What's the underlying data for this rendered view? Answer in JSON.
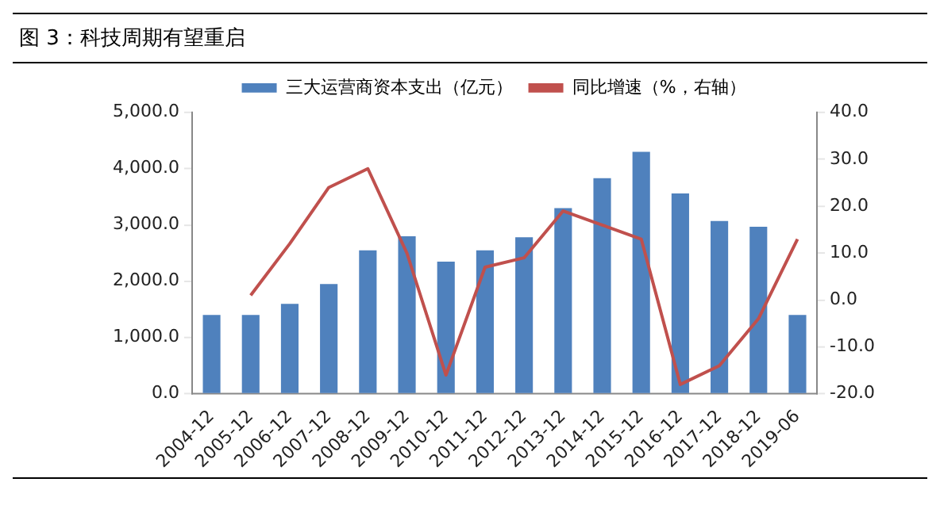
{
  "chart_data": {
    "type": "bar",
    "title": "图 3：科技周期有望重启",
    "categories": [
      "2004-12",
      "2005-12",
      "2006-12",
      "2007-12",
      "2008-12",
      "2009-12",
      "2010-12",
      "2011-12",
      "2012-12",
      "2013-12",
      "2014-12",
      "2015-12",
      "2016-12",
      "2017-12",
      "2018-12",
      "2019-06"
    ],
    "series": [
      {
        "name": "三大运营商资本支出（亿元）",
        "color": "#4f81bd",
        "values": [
          1400,
          1400,
          1600,
          1950,
          2550,
          2800,
          2350,
          2550,
          2780,
          3300,
          3830,
          4300,
          3560,
          3070,
          2970,
          1400
        ]
      },
      {
        "name": "同比增速（%，右轴）",
        "type": "line",
        "axis": "y2",
        "color": "#c0504d",
        "values": [
          null,
          1,
          12,
          24,
          28,
          10,
          -16,
          7,
          9,
          19,
          16,
          13,
          -18,
          -14,
          -4,
          13
        ]
      }
    ],
    "ylim": [
      0,
      5000
    ],
    "yticks": [
      {
        "value": 0,
        "label": "0.0"
      },
      {
        "value": 1000,
        "label": "1,000.0"
      },
      {
        "value": 2000,
        "label": "2,000.0"
      },
      {
        "value": 3000,
        "label": "3,000.0"
      },
      {
        "value": 4000,
        "label": "4,000.0"
      },
      {
        "value": 5000,
        "label": "5,000.0"
      }
    ],
    "y2lim": [
      -20,
      40
    ],
    "y2ticks": [
      {
        "value": -20,
        "label": "-20.0"
      },
      {
        "value": -10,
        "label": "-10.0"
      },
      {
        "value": 0,
        "label": "0.0"
      },
      {
        "value": 10,
        "label": "10.0"
      },
      {
        "value": 20,
        "label": "20.0"
      },
      {
        "value": 30,
        "label": "30.0"
      },
      {
        "value": 40,
        "label": "40.0"
      }
    ],
    "grid": false,
    "legend": "top",
    "marker": "none",
    "line_style": "solid"
  }
}
